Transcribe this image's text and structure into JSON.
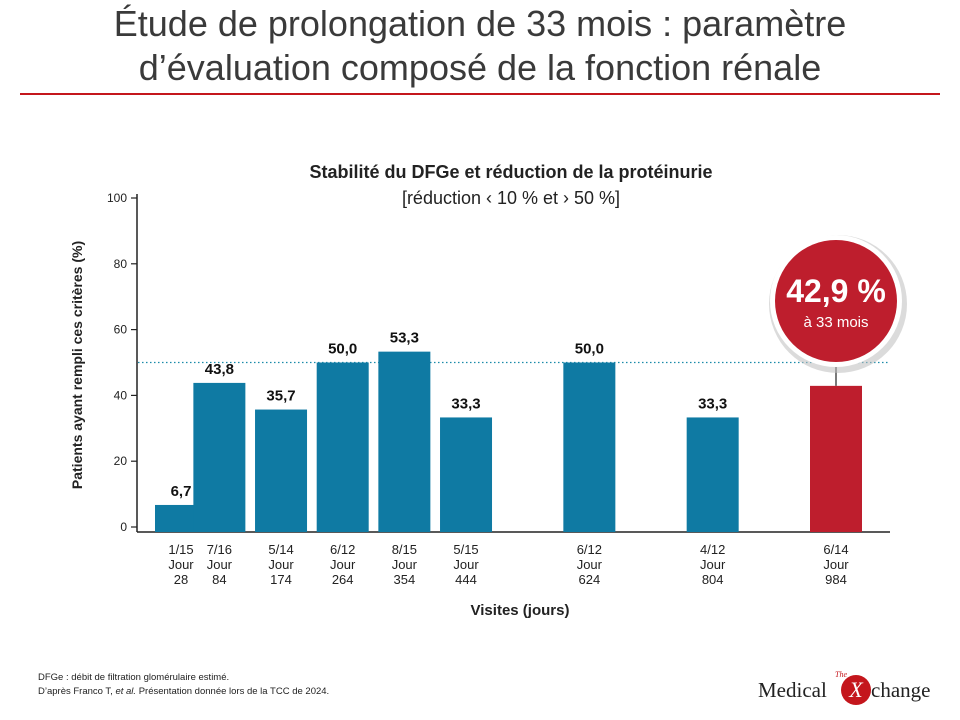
{
  "header": {
    "title_line1": "Étude de prolongation de 33 mois : paramètre",
    "title_line2": "d’évaluation composé de la fonction rénale"
  },
  "colors": {
    "bar": "#0f7aa3",
    "highlight": "#be1e2d",
    "rule": "#c4161c",
    "dotted": "#1a8aa8"
  },
  "chart_data": {
    "type": "bar",
    "title": "Stabilité du DFGe et réduction de la protéinurie",
    "subtitle": "[réduction ‹ 10 % et › 50 %]",
    "ylabel": "Patients ayant rempli ces critères (%)",
    "xlabel": "Visites (jours)",
    "ylim": [
      0,
      100
    ],
    "yticks": [
      0,
      20,
      40,
      60,
      80,
      100
    ],
    "reference_line": 50,
    "categories": [
      [
        "1/15",
        "Jour",
        "28"
      ],
      [
        "7/16",
        "Jour",
        "84"
      ],
      [
        "5/14",
        "Jour",
        "174"
      ],
      [
        "6/12",
        "Jour",
        "264"
      ],
      [
        "8/15",
        "Jour",
        "354"
      ],
      [
        "5/15",
        "Jour",
        "444"
      ],
      [
        "6/12",
        "Jour",
        "624"
      ],
      [
        "4/12",
        "Jour",
        "804"
      ],
      [
        "6/14",
        "Jour",
        "984"
      ]
    ],
    "x_days": [
      28,
      84,
      174,
      264,
      354,
      444,
      624,
      804,
      984
    ],
    "values": [
      6.7,
      43.8,
      35.7,
      50.0,
      53.3,
      33.3,
      50.0,
      33.3,
      42.9
    ],
    "value_labels": [
      "6,7",
      "43,8",
      "35,7",
      "50,0",
      "53,3",
      "33,3",
      "50,0",
      "33,3",
      ""
    ],
    "highlight_index": 8,
    "callout": {
      "value": "42,9 %",
      "label": "à 33 mois"
    }
  },
  "footnotes": {
    "line1": "DFGe : débit de filtration glomérulaire estimé.",
    "line2_pre": "D’après Franco T, ",
    "line2_em": "et al.",
    "line2_post": " Présentation donnée lors de la TCC de 2024."
  },
  "logo": {
    "the": "The",
    "word1": "Medical",
    "x": "X",
    "word2": "change"
  }
}
